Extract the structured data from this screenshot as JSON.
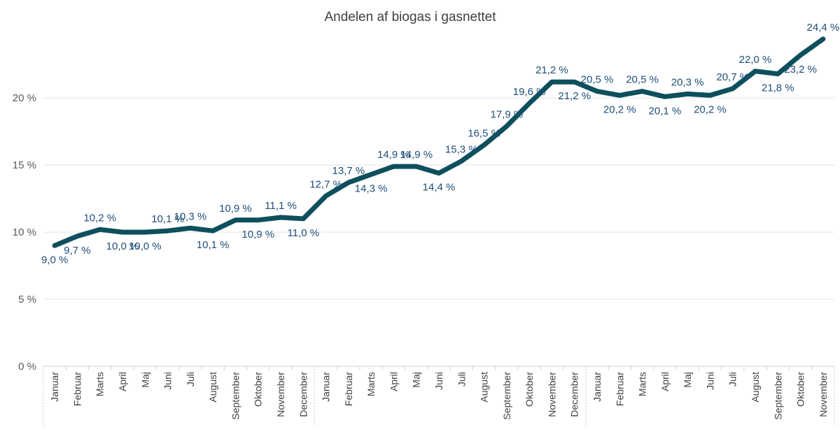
{
  "chart_data": {
    "type": "line",
    "title": "Andelen af biogas i gasnettet",
    "xlabel": "",
    "ylabel": "",
    "ylim": [
      0,
      24.7
    ],
    "yticks": [
      0,
      5,
      10,
      15,
      20
    ],
    "ytick_labels": [
      "0 %",
      "5 %",
      "10 %",
      "15 %",
      "20 %"
    ],
    "grid": true,
    "legend": "none",
    "line_color": "#0d4f5c",
    "label_color": "#1f4e79",
    "categories": [
      "Januar",
      "Februar",
      "Marts",
      "April",
      "Maj",
      "Juni",
      "Juli",
      "August",
      "September",
      "Oktober",
      "November",
      "December",
      "Januar",
      "Februar",
      "Marts",
      "April",
      "Maj",
      "Juni",
      "Juli",
      "August",
      "September",
      "Oktober",
      "November",
      "December",
      "Januar",
      "Februar",
      "Marts",
      "April",
      "Maj",
      "Juni",
      "Juli",
      "August",
      "September",
      "Oktober",
      "November"
    ],
    "series": [
      {
        "values": [
          9.0,
          9.7,
          10.2,
          10.0,
          10.0,
          10.1,
          10.3,
          10.1,
          10.9,
          10.9,
          11.1,
          11.0,
          12.7,
          13.7,
          14.3,
          14.9,
          14.9,
          14.4,
          15.3,
          16.5,
          17.9,
          19.6,
          21.2,
          21.2,
          20.5,
          20.2,
          20.5,
          20.1,
          20.3,
          20.2,
          20.7,
          22.0,
          21.8,
          23.2,
          24.4
        ],
        "labels": [
          "9,0 %",
          "9,7 %",
          "10,2 %",
          "10,0 %",
          "10,0 %",
          "10,1 %",
          "10,3 %",
          "10,1 %",
          "10,9 %",
          "10,9 %",
          "11,1 %",
          "11,0 %",
          "12,7 %",
          "13,7 %",
          "14,3 %",
          "14,9 %",
          "14,9 %",
          "14,4 %",
          "15,3 %",
          "16,5 %",
          "17,9 %",
          "19,6 %",
          "21,2 %",
          "21,2 %",
          "20,5 %",
          "20,2 %",
          "20,5 %",
          "20,1 %",
          "20,3 %",
          "20,2 %",
          "20,7 %",
          "22,0 %",
          "21,8 %",
          "23,2 %",
          "24,4 %"
        ]
      }
    ]
  }
}
